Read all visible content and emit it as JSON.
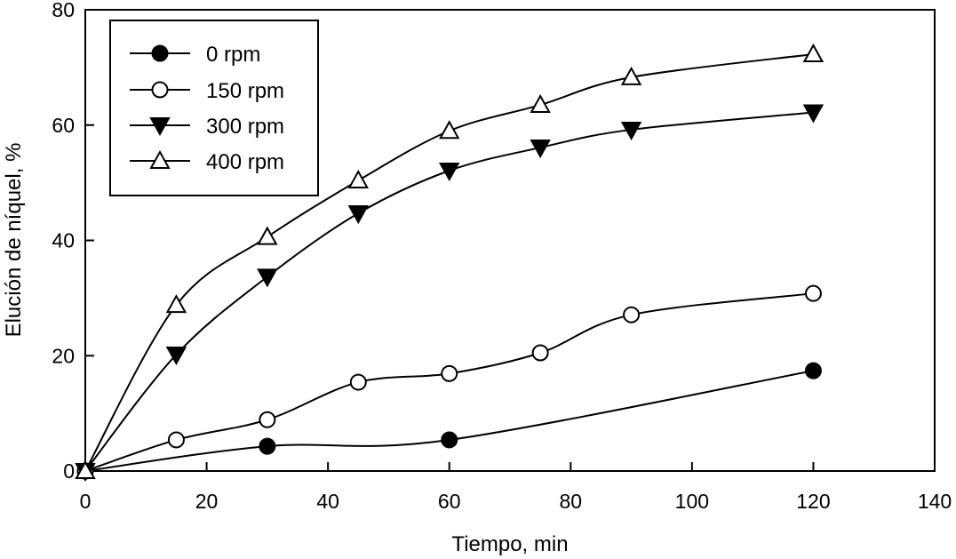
{
  "chart_data": {
    "type": "line",
    "xlabel": "Tiempo, min",
    "ylabel": "Elución de níquel, %",
    "xlim": [
      0,
      140
    ],
    "ylim": [
      0,
      80
    ],
    "xticks": [
      0,
      20,
      40,
      60,
      80,
      100,
      120,
      140
    ],
    "yticks": [
      0,
      20,
      40,
      60,
      80
    ],
    "grid": false,
    "legend_position": "top-left",
    "series": [
      {
        "name": "0 rpm",
        "marker": "filled-circle",
        "color": "#000000",
        "x": [
          0,
          30,
          60,
          120
        ],
        "y": [
          0,
          4.3,
          5.4,
          17.4
        ]
      },
      {
        "name": "150 rpm",
        "marker": "open-circle",
        "color": "#000000",
        "x": [
          0,
          15,
          30,
          45,
          60,
          75,
          90,
          120
        ],
        "y": [
          0,
          5.4,
          8.9,
          15.4,
          16.9,
          20.5,
          27.1,
          30.8
        ]
      },
      {
        "name": "300 rpm",
        "marker": "filled-triangle-down",
        "color": "#000000",
        "x": [
          0,
          15,
          30,
          45,
          60,
          75,
          90,
          120
        ],
        "y": [
          0,
          20.2,
          33.7,
          44.7,
          52.1,
          56.1,
          59.2,
          62.2
        ]
      },
      {
        "name": "400 rpm",
        "marker": "open-triangle-up",
        "color": "#000000",
        "x": [
          0,
          15,
          30,
          45,
          60,
          75,
          90,
          120
        ],
        "y": [
          0,
          28.8,
          40.6,
          50.4,
          59.0,
          63.5,
          68.3,
          72.3
        ]
      }
    ]
  }
}
